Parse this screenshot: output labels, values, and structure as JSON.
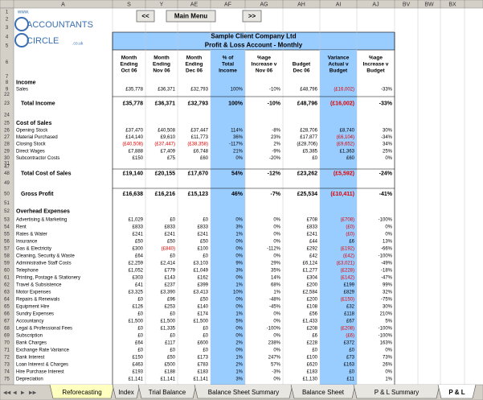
{
  "column_headers": [
    "A",
    "S",
    "Y",
    "AE",
    "AF",
    "AG",
    "AH",
    "AI",
    "AJ",
    "BV",
    "BW",
    "BX"
  ],
  "logo": {
    "www": "www.",
    "name1": "ACCOUNTANTS",
    "name2": "CIRCLE",
    "domain": ".co.uk"
  },
  "nav": {
    "prev": "<<",
    "menu": "Main Menu",
    "next": ">>"
  },
  "report": {
    "company": "Sample Client Company Ltd",
    "title": "Profit & Loss Account - Monthly"
  },
  "headers": [
    [
      "Month",
      "Ending",
      "Oct 06"
    ],
    [
      "Month",
      "Ending",
      "Nov 06"
    ],
    [
      "Month",
      "Ending",
      "Dec 06"
    ],
    [
      "% of",
      "Total",
      "Income"
    ],
    [
      "%age",
      "Increase v",
      "Nov 06"
    ],
    [
      "Budget",
      "Dec 06"
    ],
    [
      "Variance",
      "Actual v",
      "Budget"
    ],
    [
      "%age",
      "Increase v",
      "Budget"
    ]
  ],
  "rows": [
    {
      "number": "1"
    },
    {
      "number": "2"
    },
    {
      "number": "3"
    },
    {
      "number": "4"
    },
    {
      "number": "5"
    },
    {
      "number": "6"
    },
    {
      "number": "7"
    },
    {
      "number": "8",
      "label": "Income"
    },
    {
      "number": "9",
      "label": "Sales",
      "cells": [
        "£35,778",
        "£36,371",
        "£32,793",
        "100%",
        "-10%",
        "£48,796",
        "(£16,002)",
        "-33%"
      ]
    },
    {
      "number": "22"
    },
    {
      "number": "23",
      "label": "Total Income",
      "cells": [
        "£35,778",
        "£36,371",
        "£32,793",
        "100%",
        "-10%",
        "£48,796",
        "(£16,002)",
        "-33%"
      ]
    },
    {
      "number": "24"
    },
    {
      "number": "25",
      "label": "Cost of Sales"
    },
    {
      "number": "26",
      "label": "Opening Stock",
      "cells": [
        "£37,470",
        "£40,508",
        "£37,447",
        "114%",
        "-8%",
        "£28,706",
        "£8,740",
        "30%"
      ]
    },
    {
      "number": "27",
      "label": "Material Purchased",
      "cells": [
        "£14,140",
        "£9,610",
        "£11,773",
        "36%",
        "23%",
        "£17,877",
        "(£6,104)",
        "-34%"
      ]
    },
    {
      "number": "28",
      "label": "Closing Stock",
      "cells": [
        "(£40,508)",
        "(£37,447)",
        "(£38,358)",
        "-117%",
        "2%",
        "(£28,706)",
        "(£9,652)",
        "34%"
      ]
    },
    {
      "number": "29",
      "label": "Direct Wages",
      "cells": [
        "£7,888",
        "£7,409",
        "£6,748",
        "21%",
        "-9%",
        "£5,385",
        "£1,363",
        "25%"
      ]
    },
    {
      "number": "30",
      "label": "Subcontractor Costs",
      "cells": [
        "£150",
        "£75",
        "£60",
        "0%",
        "-20%",
        "£0",
        "£60",
        "0%"
      ]
    },
    {
      "number": "31"
    },
    {
      "number": "47"
    },
    {
      "number": "48",
      "label": "Total Cost of Sales",
      "cells": [
        "£19,140",
        "£20,155",
        "£17,670",
        "54%",
        "-12%",
        "£23,262",
        "(£5,592)",
        "-24%"
      ]
    },
    {
      "number": "49"
    },
    {
      "number": "50",
      "label": "Gross Profit",
      "cells": [
        "£16,638",
        "£16,216",
        "£15,123",
        "46%",
        "-7%",
        "£25,534",
        "(£10,411)",
        "-41%"
      ]
    },
    {
      "number": "51"
    },
    {
      "number": "52",
      "label": "Overhead Expenses"
    },
    {
      "number": "53",
      "label": "Advertising & Marketing",
      "cells": [
        "£1,029",
        "£0",
        "£0",
        "0%",
        "0%",
        "£708",
        "(£708)",
        "-100%"
      ]
    },
    {
      "number": "54",
      "label": "Rent",
      "cells": [
        "£833",
        "£833",
        "£833",
        "3%",
        "0%",
        "£833",
        "(£0)",
        "0%"
      ]
    },
    {
      "number": "55",
      "label": "Rates & Water",
      "cells": [
        "£241",
        "£241",
        "£241",
        "1%",
        "0%",
        "£241",
        "(£0)",
        "0%"
      ]
    },
    {
      "number": "56",
      "label": "Insurance",
      "cells": [
        "£50",
        "£50",
        "£50",
        "0%",
        "0%",
        "£44",
        "£6",
        "13%"
      ]
    },
    {
      "number": "57",
      "label": "Gas & Electricity",
      "cells": [
        "£300",
        "(£840)",
        "£100",
        "0%",
        "-112%",
        "£292",
        "(£192)",
        "-66%"
      ]
    },
    {
      "number": "58",
      "label": "Cleaning, Security & Waste",
      "cells": [
        "£64",
        "£0",
        "£0",
        "0%",
        "0%",
        "£42",
        "(£42)",
        "-100%"
      ]
    },
    {
      "number": "59",
      "label": "Administrative Staff Costs",
      "cells": [
        "£2,259",
        "£2,414",
        "£3,103",
        "9%",
        "29%",
        "£6,124",
        "(£3,021)",
        "-49%"
      ]
    },
    {
      "number": "60",
      "label": "Telephone",
      "cells": [
        "£1,052",
        "£779",
        "£1,049",
        "3%",
        "35%",
        "£1,277",
        "(£228)",
        "-18%"
      ]
    },
    {
      "number": "61",
      "label": "Printing, Postage & Stationery",
      "cells": [
        "£303",
        "£143",
        "£162",
        "0%",
        "14%",
        "£304",
        "(£142)",
        "-47%"
      ]
    },
    {
      "number": "62",
      "label": "Travel & Subsistence",
      "cells": [
        "£41",
        "£237",
        "£399",
        "1%",
        "68%",
        "£200",
        "£199",
        "99%"
      ]
    },
    {
      "number": "63",
      "label": "Motor Expenses",
      "cells": [
        "£3,325",
        "£3,390",
        "£3,413",
        "10%",
        "1%",
        "£2,584",
        "£829",
        "32%"
      ]
    },
    {
      "number": "64",
      "label": "Repairs & Renewals",
      "cells": [
        "£0",
        "£96",
        "£50",
        "0%",
        "-48%",
        "£200",
        "(£150)",
        "-75%"
      ]
    },
    {
      "number": "65",
      "label": "Equipment Hire",
      "cells": [
        "£126",
        "£253",
        "£140",
        "0%",
        "-45%",
        "£108",
        "£32",
        "30%"
      ]
    },
    {
      "number": "66",
      "label": "Sundry Expenses",
      "cells": [
        "£0",
        "£0",
        "£174",
        "1%",
        "0%",
        "£56",
        "£118",
        "210%"
      ]
    },
    {
      "number": "67",
      "label": "Accountancy",
      "cells": [
        "£1,500",
        "£1,500",
        "£1,500",
        "5%",
        "0%",
        "£1,433",
        "£67",
        "5%"
      ]
    },
    {
      "number": "68",
      "label": "Legal & Professional Fees",
      "cells": [
        "£0",
        "£1,335",
        "£0",
        "0%",
        "-100%",
        "£208",
        "(£208)",
        "-100%"
      ]
    },
    {
      "number": "69",
      "label": "Subscription",
      "cells": [
        "£0",
        "£0",
        "£0",
        "0%",
        "0%",
        "£6",
        "(£6)",
        "-100%"
      ]
    },
    {
      "number": "70",
      "label": "Bank Charges",
      "cells": [
        "£64",
        "£117",
        "£600",
        "2%",
        "238%",
        "£228",
        "£372",
        "163%"
      ]
    },
    {
      "number": "71",
      "label": "Exchange Rate Variance",
      "cells": [
        "£0",
        "£0",
        "£0",
        "0%",
        "0%",
        "£0",
        "£0",
        "0%"
      ]
    },
    {
      "number": "72",
      "label": "Bank Interest",
      "cells": [
        "£150",
        "£50",
        "£173",
        "1%",
        "247%",
        "£100",
        "£73",
        "73%"
      ]
    },
    {
      "number": "73",
      "label": "Loan Interest & Charges",
      "cells": [
        "£463",
        "£500",
        "£783",
        "2%",
        "57%",
        "£620",
        "£163",
        "26%"
      ]
    },
    {
      "number": "74",
      "label": "Hire Purchase Interest",
      "cells": [
        "£193",
        "£188",
        "£183",
        "1%",
        "-3%",
        "£183",
        "£0",
        "0%"
      ]
    },
    {
      "number": "75",
      "label": "Depreciation",
      "cells": [
        "£1,141",
        "£1,141",
        "£1,141",
        "3%",
        "0%",
        "£1,130",
        "£11",
        "1%"
      ]
    }
  ],
  "tabs": [
    "Reforecasting",
    "Index",
    "Trial Balance",
    "Balance Sheet Summary",
    "Balance Sheet",
    "P & L Summary",
    "P & L"
  ]
}
